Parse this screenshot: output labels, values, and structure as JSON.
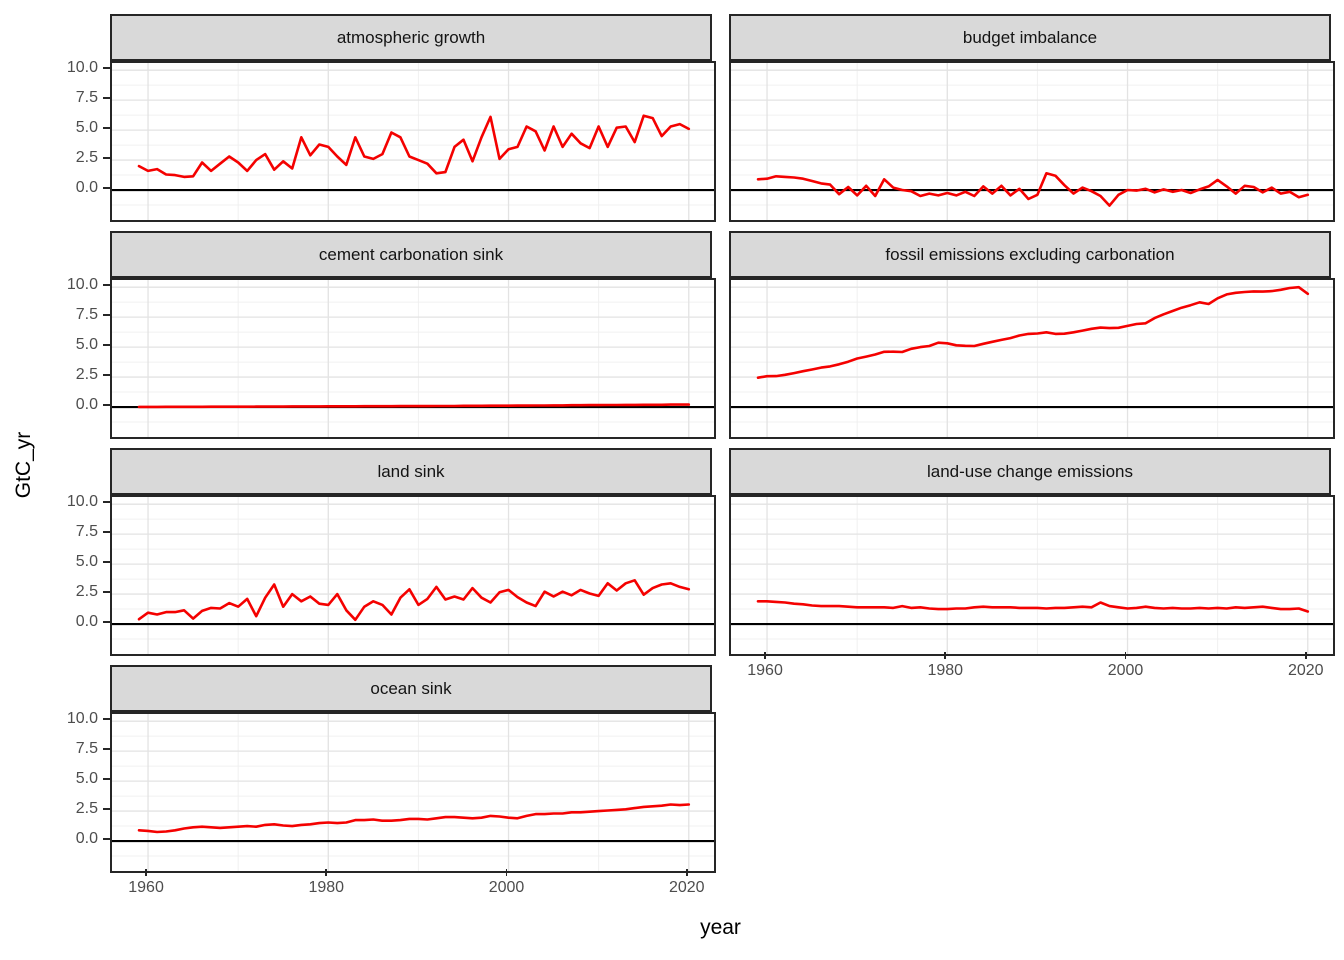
{
  "colors": {
    "line": "#f40100",
    "strip_bg": "#d9d9d9",
    "strip_text": "#141414",
    "panel_border": "#262626",
    "grid_major": "#e3e3e3",
    "grid_minor": "#f0f0f0",
    "zero_line": "#000000",
    "axis_text": "#4d4d4d",
    "axis_title": "#000000"
  },
  "chart_data": {
    "type": "line",
    "title": "",
    "xlabel": "year",
    "ylabel": "GtC_yr",
    "legend": "none",
    "grid": true,
    "zero_line": 0,
    "x_domain": [
      1956,
      2022.8
    ],
    "y_domain": [
      -2.5,
      10.6
    ],
    "x_ticks": [
      1960,
      1980,
      2000,
      2020
    ],
    "x_tick_labels": [
      "1960",
      "1980",
      "2000",
      "2020"
    ],
    "x_minor": [
      1970,
      1990,
      2010
    ],
    "y_ticks": [
      0,
      2.5,
      5,
      7.5,
      10
    ],
    "y_tick_labels": [
      "0.0",
      "2.5",
      "5.0",
      "7.5",
      "10.0"
    ],
    "y_minor": [
      -1.25,
      1.25,
      3.75,
      6.25,
      8.75
    ],
    "years": [
      1959,
      1960,
      1961,
      1962,
      1963,
      1964,
      1965,
      1966,
      1967,
      1968,
      1969,
      1970,
      1971,
      1972,
      1973,
      1974,
      1975,
      1976,
      1977,
      1978,
      1979,
      1980,
      1981,
      1982,
      1983,
      1984,
      1985,
      1986,
      1987,
      1988,
      1989,
      1990,
      1991,
      1992,
      1993,
      1994,
      1995,
      1996,
      1997,
      1998,
      1999,
      2000,
      2001,
      2002,
      2003,
      2004,
      2005,
      2006,
      2007,
      2008,
      2009,
      2010,
      2011,
      2012,
      2013,
      2014,
      2015,
      2016,
      2017,
      2018,
      2019,
      2020
    ],
    "facets": [
      {
        "title": "atmospheric growth",
        "values": [
          2.0,
          1.6,
          1.75,
          1.3,
          1.25,
          1.1,
          1.15,
          2.3,
          1.6,
          2.2,
          2.8,
          2.3,
          1.6,
          2.5,
          3.0,
          1.7,
          2.4,
          1.8,
          4.4,
          2.9,
          3.8,
          3.6,
          2.8,
          2.1,
          4.4,
          2.8,
          2.6,
          3.0,
          4.8,
          4.4,
          2.8,
          2.5,
          2.2,
          1.4,
          1.5,
          3.6,
          4.2,
          2.4,
          4.4,
          6.1,
          2.6,
          3.4,
          3.6,
          5.3,
          4.9,
          3.3,
          5.3,
          3.6,
          4.7,
          3.9,
          3.5,
          5.3,
          3.6,
          5.2,
          5.3,
          4.0,
          6.2,
          6.0,
          4.5,
          5.3,
          5.5,
          5.1
        ]
      },
      {
        "title": "budget imbalance",
        "values": [
          0.9,
          0.95,
          1.15,
          1.1,
          1.05,
          0.95,
          0.75,
          0.55,
          0.45,
          -0.35,
          0.25,
          -0.45,
          0.35,
          -0.5,
          0.9,
          0.2,
          0.0,
          -0.1,
          -0.5,
          -0.3,
          -0.45,
          -0.25,
          -0.45,
          -0.15,
          -0.5,
          0.3,
          -0.3,
          0.35,
          -0.45,
          0.1,
          -0.75,
          -0.4,
          1.4,
          1.2,
          0.4,
          -0.3,
          0.2,
          -0.1,
          -0.5,
          -1.3,
          -0.4,
          0.0,
          -0.05,
          0.1,
          -0.2,
          0.05,
          -0.15,
          0.0,
          -0.25,
          0.05,
          0.3,
          0.85,
          0.3,
          -0.3,
          0.35,
          0.25,
          -0.2,
          0.2,
          -0.3,
          -0.15,
          -0.6,
          -0.4
        ]
      },
      {
        "title": "cement carbonation sink",
        "values": [
          0.01,
          0.01,
          0.01,
          0.02,
          0.02,
          0.02,
          0.02,
          0.02,
          0.03,
          0.03,
          0.03,
          0.03,
          0.03,
          0.04,
          0.04,
          0.04,
          0.04,
          0.05,
          0.05,
          0.05,
          0.05,
          0.06,
          0.06,
          0.06,
          0.06,
          0.07,
          0.07,
          0.07,
          0.07,
          0.08,
          0.08,
          0.08,
          0.08,
          0.09,
          0.09,
          0.09,
          0.1,
          0.1,
          0.1,
          0.11,
          0.11,
          0.11,
          0.12,
          0.12,
          0.13,
          0.13,
          0.14,
          0.14,
          0.15,
          0.15,
          0.16,
          0.16,
          0.17,
          0.17,
          0.18,
          0.18,
          0.19,
          0.19,
          0.19,
          0.2,
          0.2,
          0.2
        ]
      },
      {
        "title": "fossil emissions excluding carbonation",
        "values": [
          2.45,
          2.57,
          2.58,
          2.69,
          2.83,
          2.99,
          3.13,
          3.29,
          3.39,
          3.57,
          3.78,
          4.05,
          4.21,
          4.38,
          4.61,
          4.62,
          4.59,
          4.86,
          5.0,
          5.09,
          5.37,
          5.32,
          5.15,
          5.11,
          5.09,
          5.28,
          5.44,
          5.6,
          5.75,
          5.97,
          6.1,
          6.14,
          6.24,
          6.1,
          6.12,
          6.24,
          6.38,
          6.53,
          6.63,
          6.59,
          6.61,
          6.77,
          6.93,
          6.99,
          7.42,
          7.74,
          8.01,
          8.29,
          8.5,
          8.74,
          8.6,
          9.07,
          9.4,
          9.53,
          9.6,
          9.65,
          9.63,
          9.67,
          9.78,
          9.93,
          10.0,
          9.45
        ]
      },
      {
        "title": "land sink",
        "values": [
          0.4,
          0.95,
          0.8,
          1.0,
          1.0,
          1.15,
          0.45,
          1.1,
          1.35,
          1.3,
          1.75,
          1.45,
          2.1,
          0.65,
          2.2,
          3.3,
          1.45,
          2.5,
          1.9,
          2.3,
          1.7,
          1.6,
          2.5,
          1.15,
          0.35,
          1.45,
          1.9,
          1.6,
          0.8,
          2.2,
          2.9,
          1.6,
          2.1,
          3.1,
          2.05,
          2.3,
          2.05,
          3.0,
          2.2,
          1.8,
          2.65,
          2.85,
          2.25,
          1.8,
          1.5,
          2.7,
          2.3,
          2.7,
          2.4,
          2.85,
          2.55,
          2.35,
          3.4,
          2.8,
          3.4,
          3.65,
          2.45,
          3.0,
          3.3,
          3.4,
          3.1,
          2.9
        ]
      },
      {
        "title": "land-use change emissions",
        "values": [
          1.9,
          1.9,
          1.85,
          1.8,
          1.7,
          1.65,
          1.55,
          1.5,
          1.5,
          1.5,
          1.45,
          1.4,
          1.4,
          1.4,
          1.4,
          1.35,
          1.5,
          1.35,
          1.4,
          1.3,
          1.25,
          1.25,
          1.3,
          1.3,
          1.4,
          1.45,
          1.4,
          1.4,
          1.4,
          1.35,
          1.35,
          1.35,
          1.3,
          1.35,
          1.35,
          1.4,
          1.45,
          1.4,
          1.8,
          1.5,
          1.4,
          1.3,
          1.35,
          1.45,
          1.35,
          1.3,
          1.35,
          1.3,
          1.3,
          1.35,
          1.3,
          1.35,
          1.3,
          1.4,
          1.35,
          1.4,
          1.45,
          1.35,
          1.25,
          1.25,
          1.3,
          1.05
        ]
      },
      {
        "title": "ocean sink",
        "values": [
          0.9,
          0.85,
          0.75,
          0.8,
          0.9,
          1.05,
          1.15,
          1.2,
          1.15,
          1.1,
          1.15,
          1.2,
          1.25,
          1.2,
          1.35,
          1.4,
          1.3,
          1.25,
          1.35,
          1.4,
          1.5,
          1.55,
          1.5,
          1.55,
          1.75,
          1.75,
          1.8,
          1.7,
          1.7,
          1.75,
          1.85,
          1.85,
          1.8,
          1.9,
          2.0,
          2.0,
          1.95,
          1.9,
          1.95,
          2.1,
          2.05,
          1.95,
          1.9,
          2.1,
          2.25,
          2.25,
          2.3,
          2.3,
          2.4,
          2.4,
          2.45,
          2.5,
          2.55,
          2.6,
          2.65,
          2.75,
          2.85,
          2.9,
          2.95,
          3.05,
          3.0,
          3.05
        ]
      }
    ]
  }
}
